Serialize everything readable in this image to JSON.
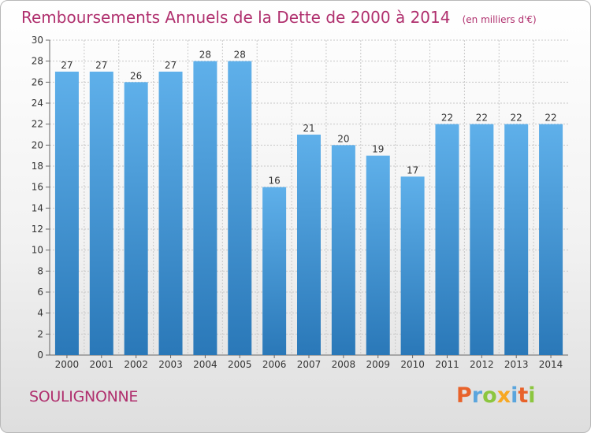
{
  "chart_data": {
    "type": "bar",
    "title": "Remboursements Annuels de la Dette de 2000 à 2014",
    "subtitle": "(en milliers d'€)",
    "categories": [
      "2000",
      "2001",
      "2002",
      "2003",
      "2004",
      "2005",
      "2006",
      "2007",
      "2008",
      "2009",
      "2010",
      "2011",
      "2012",
      "2013",
      "2014"
    ],
    "values": [
      27,
      27,
      26,
      27,
      28,
      28,
      16,
      21,
      20,
      19,
      17,
      22,
      22,
      22,
      22
    ],
    "ylim": [
      0,
      30
    ],
    "yticks": [
      0,
      2,
      4,
      6,
      8,
      10,
      12,
      14,
      16,
      18,
      20,
      22,
      24,
      26,
      28,
      30
    ],
    "grid": true,
    "xlabel": "",
    "ylabel": ""
  },
  "commune": "SOULIGNONNE",
  "logo": {
    "letters": [
      "P",
      "r",
      "o",
      "x",
      "i",
      "t",
      "i"
    ],
    "colors": [
      "#e8622a",
      "#5aa5dd",
      "#8cc63f",
      "#f7a823",
      "#5aa5dd",
      "#e8622a",
      "#8cc63f"
    ]
  },
  "colors": {
    "title": "#b0306e",
    "bar_light": "#5dade6",
    "bar_dark": "#2f7fbd",
    "grid": "#c8c8c8"
  }
}
